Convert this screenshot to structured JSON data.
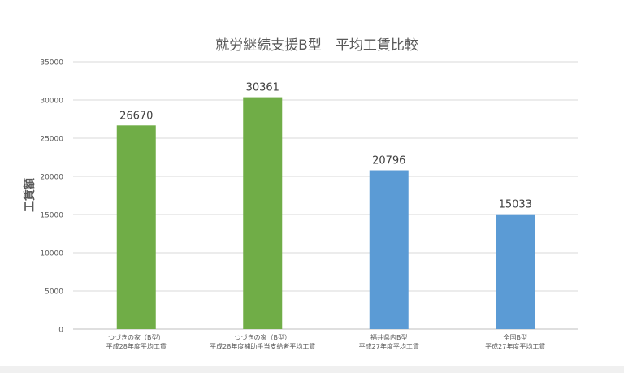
{
  "chart_data": {
    "type": "bar",
    "title": "就労継続支援B型　平均工賃比較",
    "ylabel": "工賃額",
    "xlabel": "",
    "ylim": [
      0,
      35000
    ],
    "yticks": [
      "0",
      "5000",
      "10000",
      "15000",
      "20000",
      "25000",
      "30000",
      "35000"
    ],
    "ytick_values": [
      0,
      5000,
      10000,
      15000,
      20000,
      25000,
      30000,
      35000
    ],
    "grid": true,
    "legend": "none",
    "categories": [
      [
        "つづきの家（B型）",
        "平成28年度平均工賃"
      ],
      [
        "つづきの家（B型）",
        "平成28年度補助手当支給者平均工賃"
      ],
      [
        "福井県内B型",
        "平成27年度平均工賃"
      ],
      [
        "全国B型",
        "平成27年度平均工賃"
      ]
    ],
    "values": [
      26670,
      30361,
      20796,
      15033
    ],
    "data_labels": [
      "26670",
      "30361",
      "20796",
      "15033"
    ],
    "colors": [
      "#70ad47",
      "#70ad47",
      "#5b9bd5",
      "#5b9bd5"
    ]
  }
}
